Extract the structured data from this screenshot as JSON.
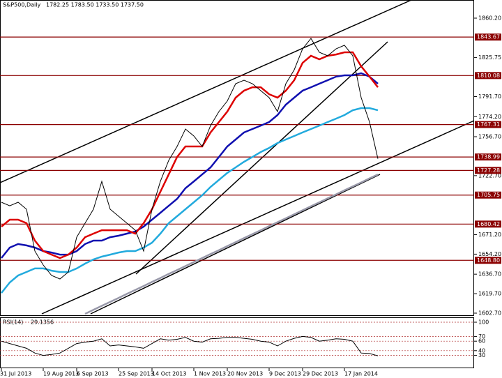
{
  "header": "S&P500,Daily",
  "subtitle": "1782.25 1783.50 1733.50 1737.50",
  "chart_data": [
    {
      "type": "line",
      "categories": [
        "31 Jul 2013",
        null,
        null,
        null,
        null,
        "19 Aug 2013",
        null,
        null,
        null,
        "6 Sep 2013",
        null,
        null,
        null,
        null,
        "25 Sep 2013",
        null,
        null,
        null,
        "14 Oct 2013",
        null,
        null,
        null,
        null,
        "1 Nov 2013",
        null,
        null,
        null,
        "20 Nov 2013",
        null,
        null,
        null,
        null,
        "9 Dec 2013",
        null,
        null,
        null,
        "29 Dec 2013",
        null,
        null,
        null,
        null,
        "17 Jan 2014",
        null,
        null,
        null,
        null
      ],
      "series": [
        {
          "name": "S&P500",
          "color": "#000000",
          "values": [
            1699.5,
            1696.4,
            1699.5,
            1693.4,
            1656.9,
            1644.7,
            1635.6,
            1632.5,
            1638.6,
            1669.0,
            1681.2,
            1693.4,
            1717.7,
            1693.4,
            1687.3,
            1681.2,
            1675.1,
            1656.9,
            1693.4,
            1717.7,
            1736.0,
            1748.2,
            1763.4,
            1757.3,
            1748.2,
            1766.4,
            1778.6,
            1787.8,
            1803.0,
            1806.0,
            1803.0,
            1796.9,
            1790.8,
            1778.6,
            1803.0,
            1815.1,
            1833.4,
            1842.5,
            1830.4,
            1827.3,
            1833.4,
            1836.5,
            1827.3,
            1790.8,
            1769.5,
            1737.5
          ]
        },
        {
          "name": "MA red",
          "color": "#dd0000",
          "values": [
            1678.2,
            1684.3,
            1684.3,
            1681.2,
            1666.0,
            1656.9,
            1653.8,
            1650.8,
            1653.8,
            1659.9,
            1669.0,
            1672.1,
            1675.1,
            1675.1,
            1675.1,
            1675.1,
            1672.1,
            1681.2,
            1693.4,
            1708.6,
            1723.8,
            1739.0,
            1748.2,
            1748.2,
            1748.2,
            1760.4,
            1769.5,
            1778.6,
            1790.8,
            1796.9,
            1799.9,
            1799.9,
            1793.8,
            1790.8,
            1796.9,
            1806.0,
            1821.2,
            1827.3,
            1824.3,
            1827.3,
            1828.5,
            1830.4,
            1830.4,
            1818.2,
            1809.1,
            1799.9
          ]
        },
        {
          "name": "MA blue",
          "color": "#1010b0",
          "values": [
            1650.8,
            1659.9,
            1663.0,
            1661.8,
            1659.9,
            1656.9,
            1655.6,
            1653.8,
            1653.8,
            1656.9,
            1663.0,
            1666.0,
            1666.0,
            1669.0,
            1670.3,
            1672.1,
            1673.9,
            1678.2,
            1684.3,
            1690.3,
            1696.4,
            1702.5,
            1711.7,
            1717.7,
            1723.8,
            1729.9,
            1739.0,
            1748.2,
            1754.3,
            1760.4,
            1763.4,
            1766.4,
            1769.5,
            1775.6,
            1784.7,
            1790.8,
            1796.9,
            1799.9,
            1803.0,
            1806.0,
            1809.1,
            1810.3,
            1810.3,
            1812.1,
            1809.1,
            1803.0
          ]
        },
        {
          "name": "MA cyan",
          "color": "#22aadd",
          "values": [
            1620.3,
            1629.5,
            1635.6,
            1638.6,
            1641.7,
            1641.7,
            1639.8,
            1638.6,
            1638.6,
            1641.7,
            1645.9,
            1649.6,
            1652.0,
            1653.8,
            1655.6,
            1656.9,
            1656.9,
            1659.9,
            1664.2,
            1672.1,
            1681.2,
            1687.3,
            1693.4,
            1699.5,
            1705.6,
            1712.9,
            1719.0,
            1725.1,
            1729.9,
            1734.8,
            1739.0,
            1743.3,
            1746.9,
            1751.2,
            1754.3,
            1757.3,
            1760.4,
            1763.4,
            1766.4,
            1769.5,
            1772.5,
            1775.6,
            1779.8,
            1781.7,
            1781.7,
            1779.8
          ]
        },
        {
          "name": "MA gray",
          "color": "#9999aa",
          "values": [
            null,
            null,
            null,
            null,
            null,
            null,
            null,
            null,
            null,
            null,
            1602.1,
            1605.6,
            1609.1,
            1612.5,
            1616.0,
            1619.5,
            1623.0,
            1626.4,
            1629.9,
            1633.4,
            1636.9,
            1640.3,
            1643.8,
            1647.3,
            1650.8,
            1654.3,
            1657.7,
            1661.2,
            1664.7,
            1668.2,
            1671.6,
            1675.1,
            1678.6,
            1682.1,
            1685.5,
            1689.0,
            1692.5,
            1696.0,
            1699.4,
            1702.9,
            1706.4,
            1709.9,
            1713.3,
            1716.8,
            1720.3,
            1723.8
          ]
        }
      ],
      "ylim": [
        1602.7,
        1860.2
      ],
      "yticks": [
        {
          "value": 1602.7,
          "label": "1602.70"
        },
        {
          "value": 1619.7,
          "label": "1619.70"
        },
        {
          "value": 1636.7,
          "label": "1636.70"
        },
        {
          "value": 1654.2,
          "label": "1654.20"
        },
        {
          "value": 1671.2,
          "label": "1671.20"
        },
        {
          "value": 1722.7,
          "label": "1722.70"
        },
        {
          "value": 1756.7,
          "label": "1756.70"
        },
        {
          "value": 1774.2,
          "label": "1774.20"
        },
        {
          "value": 1791.7,
          "label": "1791.70"
        },
        1825.75,
        {
          "value": 1860.2,
          "label": "1860.20"
        }
      ],
      "levels": [
        1843.67,
        1810.08,
        1767.31,
        1738.99,
        1727.28,
        1705.75,
        1680.42,
        {
          "value": 1648.8,
          "label": "1648.80"
        }
      ],
      "level_color": "#8b0000"
    },
    {
      "type": "line",
      "title": "RSI(14)",
      "series": [
        {
          "name": "RSI(14)",
          "color": "#000000",
          "values": [
            60,
            55,
            50,
            45,
            35,
            30,
            32,
            35,
            45,
            55,
            58,
            60,
            65,
            50,
            52,
            50,
            48,
            45,
            55,
            65,
            62,
            64,
            68,
            60,
            58,
            65,
            66,
            68,
            68,
            66,
            64,
            60,
            58,
            50,
            60,
            66,
            70,
            68,
            60,
            62,
            65,
            64,
            60,
            35,
            34,
            29.1356
          ]
        }
      ],
      "ylim": [
        0,
        100
      ],
      "yticks": [
        30,
        40,
        60,
        70,
        100
      ]
    }
  ]
}
